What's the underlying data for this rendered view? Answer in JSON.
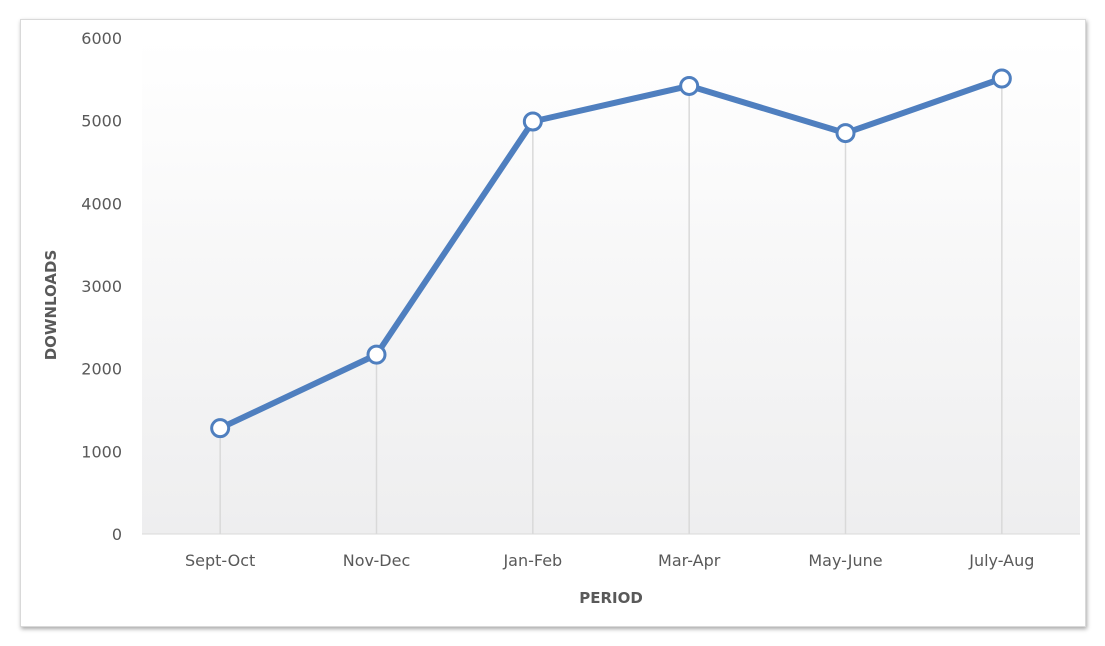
{
  "chart_data": {
    "type": "line",
    "categories": [
      "Sept-Oct",
      "Nov-Dec",
      "Jan-Feb",
      "Mar-Apr",
      "May-June",
      "July-Aug"
    ],
    "series": [
      {
        "values": [
          1280,
          2170,
          4990,
          5420,
          4850,
          5510
        ]
      }
    ],
    "xlabel": "PERIOD",
    "ylabel": "DOWNLOADS",
    "ylim": [
      0,
      6000
    ],
    "yticks": [
      "0",
      "1000",
      "2000",
      "3000",
      "4000",
      "5000",
      "6000"
    ],
    "grid": "vertical drop lines from points",
    "legend": "none",
    "colors": {
      "line": "#4f7fbf",
      "marker_fill": "#ffffff",
      "drop_line": "#d9d9d9",
      "text": "#595959"
    }
  }
}
